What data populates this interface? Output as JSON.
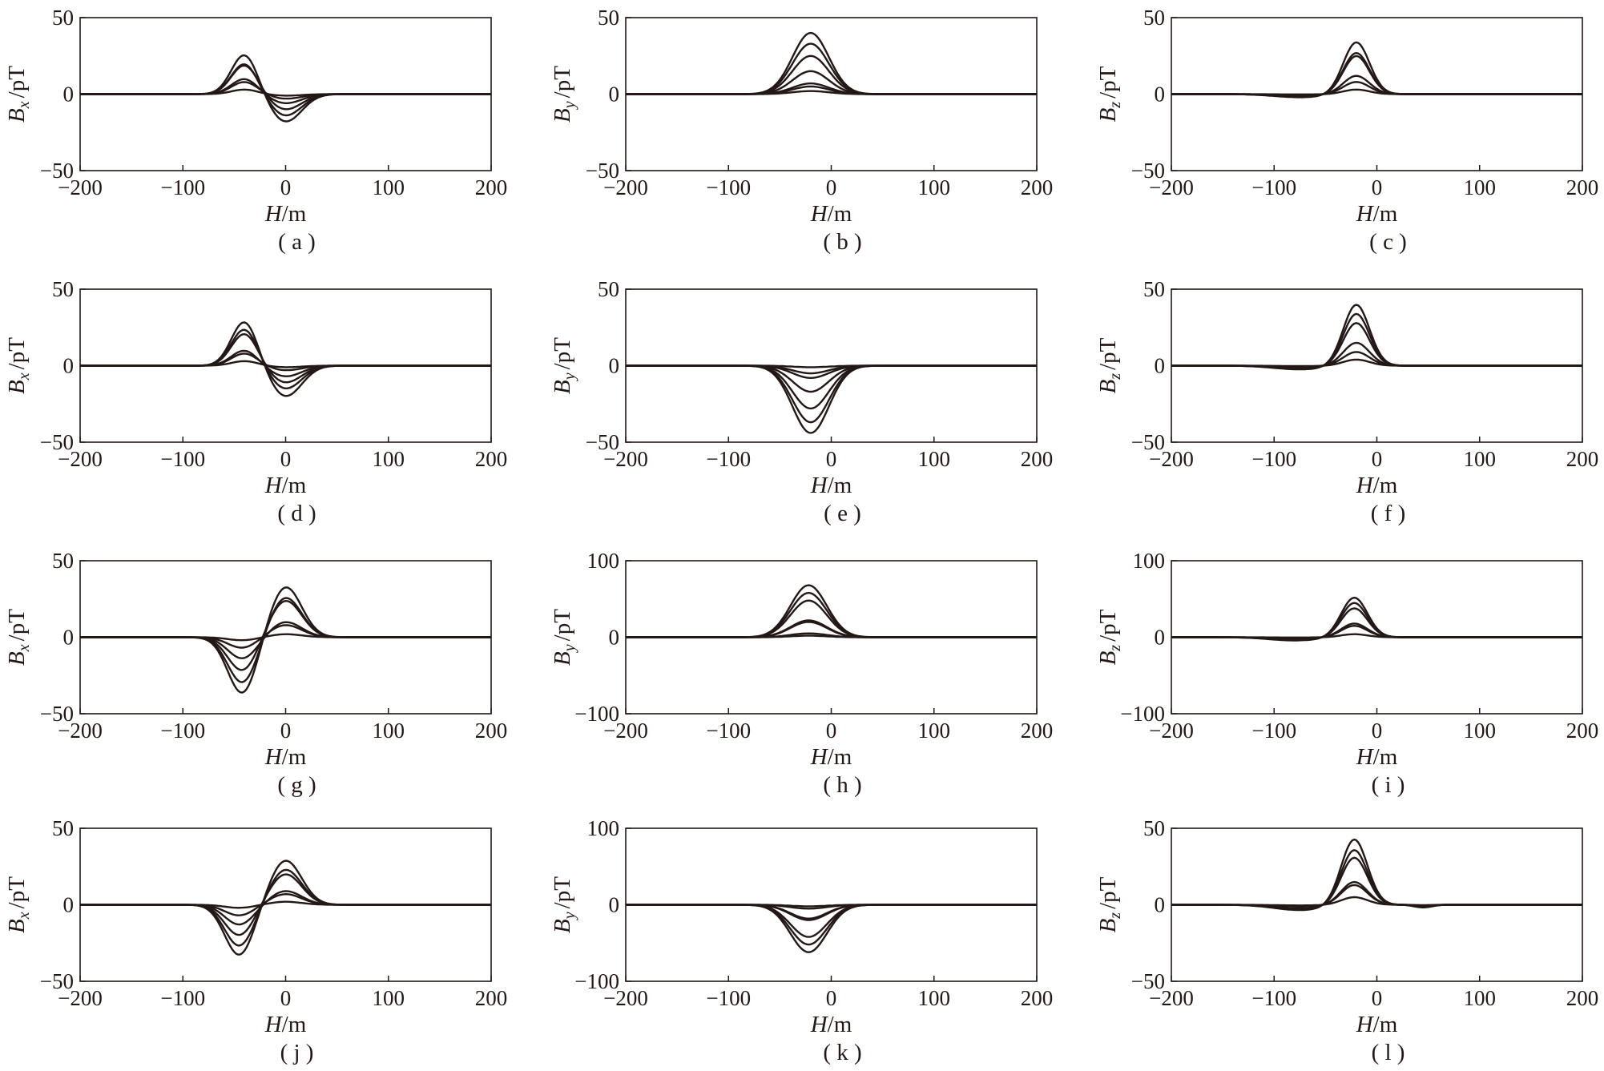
{
  "chart_data": [
    {
      "panel_label": "( a )",
      "type": "line",
      "xlabel_italic": "H",
      "xlabel_unit": "/m",
      "ylabel_symbol": "B",
      "ylabel_sub": "x",
      "ylabel_unit": "/pT",
      "xlim": [
        -200,
        200
      ],
      "ylim": [
        -50,
        50
      ],
      "xticks": [
        -200,
        -100,
        0,
        100,
        200
      ],
      "yticks": [
        -50,
        0,
        50
      ],
      "series_params": {
        "kind": "antisym",
        "x1": -40,
        "x2": 0,
        "w1": 18,
        "w2": 22,
        "z": 0
      },
      "series": [
        {
          "values": [
            26,
            -18
          ]
        },
        {
          "values": [
            20,
            -14
          ]
        },
        {
          "values": [
            19,
            -10
          ]
        },
        {
          "values": [
            10,
            -6
          ]
        },
        {
          "values": [
            8,
            -3
          ]
        },
        {
          "values": [
            3,
            -1
          ]
        }
      ]
    },
    {
      "panel_label": "( b )",
      "type": "line",
      "xlabel_italic": "H",
      "xlabel_unit": "/m",
      "ylabel_symbol": "B",
      "ylabel_sub": "y",
      "ylabel_unit": "/pT",
      "xlim": [
        -200,
        200
      ],
      "ylim": [
        -50,
        50
      ],
      "xticks": [
        -200,
        -100,
        0,
        100,
        200
      ],
      "yticks": [
        -50,
        0,
        50
      ],
      "series_params": {
        "kind": "bell",
        "c": -20,
        "w": 25
      },
      "series": [
        {
          "values": [
            40
          ]
        },
        {
          "values": [
            33
          ]
        },
        {
          "values": [
            25
          ]
        },
        {
          "values": [
            15
          ]
        },
        {
          "values": [
            7
          ]
        },
        {
          "values": [
            5
          ]
        },
        {
          "values": [
            2
          ]
        }
      ]
    },
    {
      "panel_label": "( c )",
      "type": "line",
      "xlabel_italic": "H",
      "xlabel_unit": "/m",
      "ylabel_symbol": "B",
      "ylabel_sub": "z",
      "ylabel_unit": "/pT",
      "xlim": [
        -200,
        200
      ],
      "ylim": [
        -50,
        50
      ],
      "xticks": [
        -200,
        -100,
        0,
        100,
        200
      ],
      "yticks": [
        -50,
        0,
        50
      ],
      "series_params": {
        "kind": "peakdip",
        "c": -20,
        "w": 18,
        "dc": -75,
        "dw": 35,
        "dr": 0.06
      },
      "series": [
        {
          "values": [
            34
          ]
        },
        {
          "values": [
            27
          ]
        },
        {
          "values": [
            25
          ]
        },
        {
          "values": [
            12
          ]
        },
        {
          "values": [
            8
          ]
        },
        {
          "values": [
            3
          ]
        }
      ]
    },
    {
      "panel_label": "( d )",
      "type": "line",
      "xlabel_italic": "H",
      "xlabel_unit": "/m",
      "ylabel_symbol": "B",
      "ylabel_sub": "x",
      "ylabel_unit": "/pT",
      "xlim": [
        -200,
        200
      ],
      "ylim": [
        -50,
        50
      ],
      "xticks": [
        -200,
        -100,
        0,
        100,
        200
      ],
      "yticks": [
        -50,
        0,
        50
      ],
      "series_params": {
        "kind": "antisym",
        "x1": -40,
        "x2": 0,
        "w1": 18,
        "w2": 22,
        "z": 0
      },
      "series": [
        {
          "values": [
            29,
            -20
          ]
        },
        {
          "values": [
            24,
            -15
          ]
        },
        {
          "values": [
            21,
            -11
          ]
        },
        {
          "values": [
            10,
            -7
          ]
        },
        {
          "values": [
            8,
            -3
          ]
        },
        {
          "values": [
            3,
            -1
          ]
        }
      ]
    },
    {
      "panel_label": "( e )",
      "type": "line",
      "xlabel_italic": "H",
      "xlabel_unit": "/m",
      "ylabel_symbol": "B",
      "ylabel_sub": "y",
      "ylabel_unit": "/pT",
      "xlim": [
        -200,
        200
      ],
      "ylim": [
        -50,
        50
      ],
      "xticks": [
        -200,
        -100,
        0,
        100,
        200
      ],
      "yticks": [
        -50,
        0,
        50
      ],
      "series_params": {
        "kind": "bell",
        "c": -20,
        "w": 25
      },
      "series": [
        {
          "values": [
            -44
          ]
        },
        {
          "values": [
            -37
          ]
        },
        {
          "values": [
            -28
          ]
        },
        {
          "values": [
            -17
          ]
        },
        {
          "values": [
            -8
          ]
        },
        {
          "values": [
            -5
          ]
        },
        {
          "values": [
            -1
          ]
        }
      ]
    },
    {
      "panel_label": "( f )",
      "type": "line",
      "xlabel_italic": "H",
      "xlabel_unit": "/m",
      "ylabel_symbol": "B",
      "ylabel_sub": "z",
      "ylabel_unit": "/pT",
      "xlim": [
        -200,
        200
      ],
      "ylim": [
        -50,
        50
      ],
      "xticks": [
        -200,
        -100,
        0,
        100,
        200
      ],
      "yticks": [
        -50,
        0,
        50
      ],
      "series_params": {
        "kind": "peakdip",
        "c": -20,
        "w": 18,
        "dc": -75,
        "dw": 35,
        "dr": 0.06
      },
      "series": [
        {
          "values": [
            40
          ]
        },
        {
          "values": [
            34
          ]
        },
        {
          "values": [
            28
          ]
        },
        {
          "values": [
            15
          ]
        },
        {
          "values": [
            9
          ]
        },
        {
          "values": [
            4
          ]
        }
      ]
    },
    {
      "panel_label": "( g )",
      "type": "line",
      "xlabel_italic": "H",
      "xlabel_unit": "/m",
      "ylabel_symbol": "B",
      "ylabel_sub": "x",
      "ylabel_unit": "/pT",
      "xlim": [
        -200,
        200
      ],
      "ylim": [
        -50,
        50
      ],
      "xticks": [
        -200,
        -100,
        0,
        100,
        200
      ],
      "yticks": [
        -50,
        0,
        50
      ],
      "series_params": {
        "kind": "antisym",
        "x1": -42,
        "x2": 0,
        "w1": 20,
        "w2": 22,
        "z": 0
      },
      "series": [
        {
          "values": [
            -37,
            33
          ]
        },
        {
          "values": [
            -30,
            26
          ]
        },
        {
          "values": [
            -22,
            24
          ]
        },
        {
          "values": [
            -14,
            10
          ]
        },
        {
          "values": [
            -7,
            8
          ]
        },
        {
          "values": [
            -2,
            2
          ]
        }
      ]
    },
    {
      "panel_label": "( h )",
      "type": "line",
      "xlabel_italic": "H",
      "xlabel_unit": "/m",
      "ylabel_symbol": "B",
      "ylabel_sub": "y",
      "ylabel_unit": "/pT",
      "xlim": [
        -200,
        200
      ],
      "ylim": [
        -100,
        100
      ],
      "xticks": [
        -200,
        -100,
        0,
        100,
        200
      ],
      "yticks": [
        -100,
        0,
        100
      ],
      "series_params": {
        "kind": "bell",
        "c": -22,
        "w": 25
      },
      "series": [
        {
          "values": [
            68
          ]
        },
        {
          "values": [
            58
          ]
        },
        {
          "values": [
            48
          ]
        },
        {
          "values": [
            22
          ]
        },
        {
          "values": [
            20
          ]
        },
        {
          "values": [
            5
          ]
        },
        {
          "values": [
            2
          ]
        }
      ]
    },
    {
      "panel_label": "( i )",
      "type": "line",
      "xlabel_italic": "H",
      "xlabel_unit": "/m",
      "ylabel_symbol": "B",
      "ylabel_sub": "z",
      "ylabel_unit": "/pT",
      "xlim": [
        -200,
        200
      ],
      "ylim": [
        -100,
        100
      ],
      "xticks": [
        -200,
        -100,
        0,
        100,
        200
      ],
      "yticks": [
        -100,
        0,
        100
      ],
      "series_params": {
        "kind": "peakdip",
        "c": -22,
        "w": 18,
        "dc": -80,
        "dw": 35,
        "dr": 0.08
      },
      "series": [
        {
          "values": [
            52
          ]
        },
        {
          "values": [
            45
          ]
        },
        {
          "values": [
            38
          ]
        },
        {
          "values": [
            18
          ]
        },
        {
          "values": [
            15
          ]
        },
        {
          "values": [
            4
          ]
        }
      ]
    },
    {
      "panel_label": "( j )",
      "type": "line",
      "xlabel_italic": "H",
      "xlabel_unit": "/m",
      "ylabel_symbol": "B",
      "ylabel_sub": "x",
      "ylabel_unit": "/pT",
      "xlim": [
        -200,
        200
      ],
      "ylim": [
        -50,
        50
      ],
      "xticks": [
        -200,
        -100,
        0,
        100,
        200
      ],
      "yticks": [
        -50,
        0,
        50
      ],
      "series_params": {
        "kind": "antisym",
        "x1": -45,
        "x2": 0,
        "w1": 20,
        "w2": 22,
        "z": 0
      },
      "series": [
        {
          "values": [
            -33,
            29
          ]
        },
        {
          "values": [
            -27,
            23
          ]
        },
        {
          "values": [
            -20,
            20
          ]
        },
        {
          "values": [
            -13,
            9
          ]
        },
        {
          "values": [
            -7,
            7
          ]
        },
        {
          "values": [
            -2,
            2
          ]
        }
      ]
    },
    {
      "panel_label": "( k )",
      "type": "line",
      "xlabel_italic": "H",
      "xlabel_unit": "/m",
      "ylabel_symbol": "B",
      "ylabel_sub": "y",
      "ylabel_unit": "/pT",
      "xlim": [
        -200,
        200
      ],
      "ylim": [
        -100,
        100
      ],
      "xticks": [
        -200,
        -100,
        0,
        100,
        200
      ],
      "yticks": [
        -100,
        0,
        100
      ],
      "series_params": {
        "kind": "bell",
        "c": -22,
        "w": 25
      },
      "series": [
        {
          "values": [
            -62
          ]
        },
        {
          "values": [
            -52
          ]
        },
        {
          "values": [
            -42
          ]
        },
        {
          "values": [
            -20
          ]
        },
        {
          "values": [
            -18
          ]
        },
        {
          "values": [
            -5
          ]
        },
        {
          "values": [
            -2
          ]
        }
      ]
    },
    {
      "panel_label": "( l )",
      "type": "line",
      "xlabel_italic": "H",
      "xlabel_unit": "/m",
      "ylabel_symbol": "B",
      "ylabel_sub": "z",
      "ylabel_unit": "/pT",
      "xlim": [
        -200,
        200
      ],
      "ylim": [
        -50,
        50
      ],
      "xticks": [
        -200,
        -100,
        0,
        100,
        200
      ],
      "yticks": [
        -50,
        0,
        50
      ],
      "series_params": {
        "kind": "peakdip",
        "c": -22,
        "w": 18,
        "dc": -75,
        "dw": 35,
        "dr": 0.08,
        "pc": 45,
        "pw": 12,
        "pr": 0.04
      },
      "series": [
        {
          "values": [
            43
          ]
        },
        {
          "values": [
            36
          ]
        },
        {
          "values": [
            31
          ]
        },
        {
          "values": [
            15
          ]
        },
        {
          "values": [
            13
          ]
        },
        {
          "values": [
            5
          ]
        }
      ]
    }
  ],
  "style": {
    "line_color": "#231815",
    "axis_color": "#231815",
    "background": "#ffffff"
  }
}
